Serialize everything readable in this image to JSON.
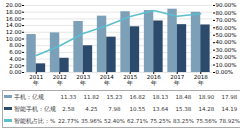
{
  "chart_data": {
    "type": "bar",
    "categories": [
      "2011\n年",
      "2012\n年",
      "2013\n年",
      "2014\n年",
      "2015\n年",
      "2016\n年",
      "2017\n年",
      "2018\n年"
    ],
    "series": [
      {
        "name": "手机：亿规",
        "color": "#7ca0b8",
        "values": [
          11.33,
          11.82,
          15.23,
          16.82,
          18.13,
          18.48,
          18.9,
          17.98
        ],
        "value_labels": [
          "11.33",
          "11.82",
          "15.23",
          "16.82",
          "18.13",
          "18.48",
          "18.90",
          "17.98"
        ]
      },
      {
        "name": "智能手机：亿规",
        "color": "#2c4a6b",
        "values": [
          2.58,
          4.25,
          7.98,
          10.55,
          13.64,
          15.38,
          14.28,
          14.19
        ],
        "value_labels": [
          "2.58",
          "4.25",
          "7.98",
          "10.55",
          "13.64",
          "15.38",
          "14.28",
          "14.19"
        ]
      },
      {
        "name": "智能机占比：%",
        "color": "#5bbfcf",
        "type": "line",
        "axis": "y2",
        "values": [
          22.77,
          35.96,
          52.4,
          62.71,
          75.25,
          83.25,
          75.56,
          78.92
        ],
        "value_labels": [
          "22.77%",
          "35.96%",
          "52.40%",
          "62.71%",
          "75.25%",
          "83.25%",
          "75.56%",
          "78.92%"
        ]
      }
    ],
    "ylim": [
      0,
      20
    ],
    "yticks": [
      {
        "value": 0,
        "label": "0.00"
      },
      {
        "value": 2,
        "label": "2.00"
      },
      {
        "value": 4,
        "label": "4.00"
      },
      {
        "value": 6,
        "label": "6.00"
      },
      {
        "value": 8,
        "label": "8.00"
      },
      {
        "value": 10,
        "label": "10.00"
      },
      {
        "value": 12,
        "label": "12.00"
      },
      {
        "value": 14,
        "label": "14.00"
      },
      {
        "value": 16,
        "label": "16.00"
      },
      {
        "value": 18,
        "label": "18.00"
      },
      {
        "value": 20,
        "label": "20.00"
      }
    ],
    "y2lim": [
      0,
      90
    ],
    "y2ticks": [
      {
        "value": 0,
        "label": "0.00%"
      },
      {
        "value": 10,
        "label": "10.00%"
      },
      {
        "value": 20,
        "label": "20.00%"
      },
      {
        "value": 30,
        "label": "30.00%"
      },
      {
        "value": 40,
        "label": "40.00%"
      },
      {
        "value": 50,
        "label": "50.00%"
      },
      {
        "value": 60,
        "label": "60.00%"
      },
      {
        "value": 70,
        "label": "70.00%"
      },
      {
        "value": 80,
        "label": "80.00%"
      },
      {
        "value": 90,
        "label": "90.00%"
      }
    ],
    "grid": true
  }
}
